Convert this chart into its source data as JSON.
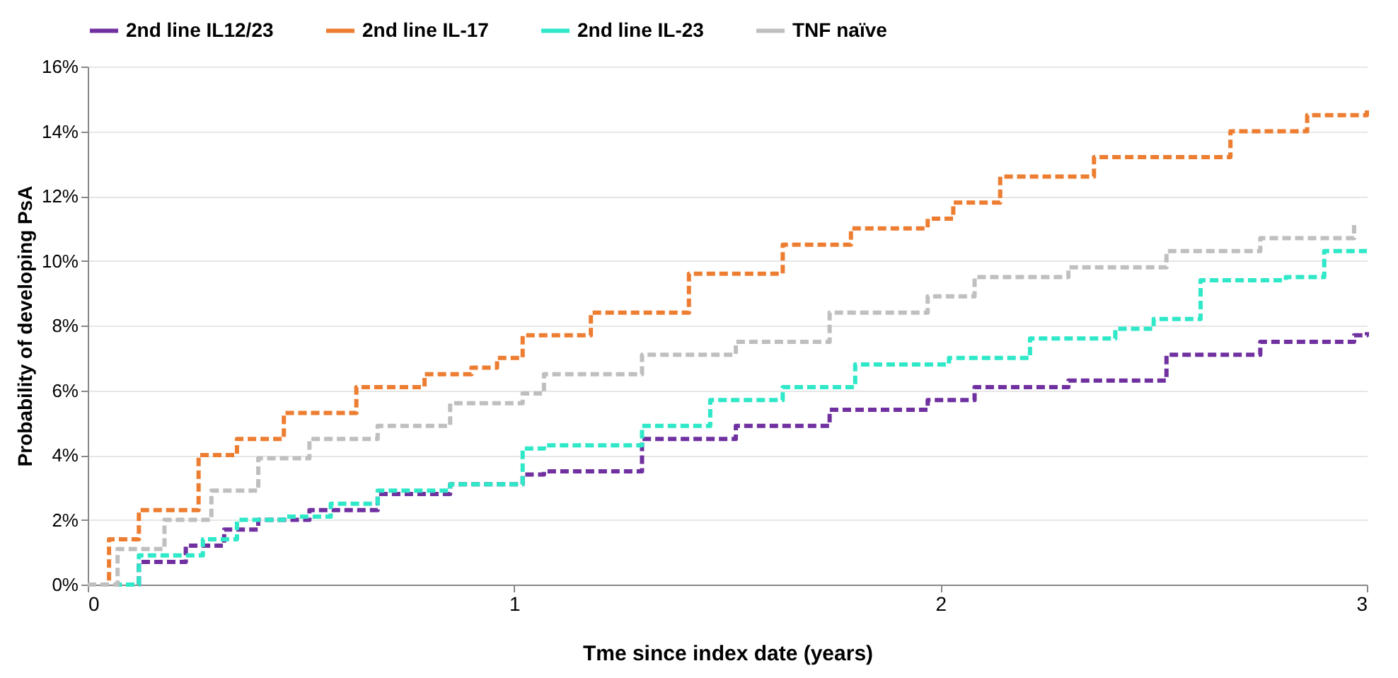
{
  "chart_data": {
    "type": "step",
    "xlabel": "Tme since index date (years)",
    "ylabel": "Probability of developing PsA",
    "xlim": [
      0,
      3
    ],
    "xticks": [
      0,
      1,
      2,
      3
    ],
    "ylim": [
      0,
      16
    ],
    "yticks": [
      {
        "value": 0,
        "label": "0%"
      },
      {
        "value": 2,
        "label": "2%"
      },
      {
        "value": 4,
        "label": "4%"
      },
      {
        "value": 6,
        "label": "6%"
      },
      {
        "value": 8,
        "label": "8%"
      },
      {
        "value": 10,
        "label": "10%"
      },
      {
        "value": 12,
        "label": "12%"
      },
      {
        "value": 14,
        "label": "14%"
      },
      {
        "value": 16,
        "label": "16%"
      }
    ],
    "grid": "y",
    "legend": "top",
    "line_style": "dashed",
    "series": [
      {
        "name": "2nd line IL12/23",
        "color": "#7030a0",
        "x": [
          0,
          0.12,
          0.23,
          0.32,
          0.4,
          0.52,
          0.68,
          0.85,
          1.02,
          1.07,
          1.3,
          1.52,
          1.74,
          1.97,
          2.08,
          2.3,
          2.53,
          2.75,
          2.97,
          3.0
        ],
        "values": [
          0,
          0.7,
          1.2,
          1.7,
          2.0,
          2.3,
          2.8,
          3.1,
          3.4,
          3.5,
          4.5,
          4.9,
          5.4,
          5.7,
          6.1,
          6.3,
          7.1,
          7.5,
          7.7,
          7.8
        ]
      },
      {
        "name": "2nd line IL-17",
        "color": "#ed7d31",
        "x": [
          0,
          0.05,
          0.12,
          0.26,
          0.35,
          0.46,
          0.63,
          0.79,
          0.9,
          0.96,
          1.02,
          1.18,
          1.41,
          1.63,
          1.79,
          1.97,
          2.03,
          2.14,
          2.36,
          2.68,
          2.86,
          3.0
        ],
        "values": [
          0,
          1.4,
          2.3,
          4.0,
          4.5,
          5.3,
          6.1,
          6.5,
          6.7,
          7.0,
          7.7,
          8.4,
          9.6,
          10.5,
          11.0,
          11.3,
          11.8,
          12.6,
          13.2,
          14.0,
          14.5,
          14.7
        ]
      },
      {
        "name": "2nd line IL-23",
        "color": "#2ee8c8",
        "x": [
          0,
          0.12,
          0.27,
          0.35,
          0.46,
          0.57,
          0.68,
          0.85,
          1.02,
          1.07,
          1.3,
          1.46,
          1.63,
          1.8,
          2.02,
          2.19,
          2.21,
          2.41,
          2.5,
          2.61,
          2.81,
          2.9,
          3.0
        ],
        "values": [
          0,
          0.9,
          1.4,
          2.0,
          2.1,
          2.5,
          2.9,
          3.1,
          4.2,
          4.3,
          4.9,
          5.7,
          6.1,
          6.8,
          7.0,
          7.0,
          7.6,
          7.9,
          8.2,
          9.4,
          9.5,
          10.3,
          10.3
        ]
      },
      {
        "name": "TNF naïve",
        "color": "#bfbfbf",
        "x": [
          0,
          0.07,
          0.18,
          0.29,
          0.4,
          0.52,
          0.68,
          0.85,
          1.02,
          1.07,
          1.3,
          1.52,
          1.74,
          1.97,
          2.08,
          2.3,
          2.53,
          2.75,
          2.97
        ],
        "values": [
          0,
          1.1,
          2.0,
          2.9,
          3.9,
          4.5,
          4.9,
          5.6,
          5.9,
          6.5,
          7.1,
          7.5,
          8.4,
          8.9,
          9.5,
          9.8,
          10.3,
          10.7,
          11.2
        ]
      }
    ]
  }
}
